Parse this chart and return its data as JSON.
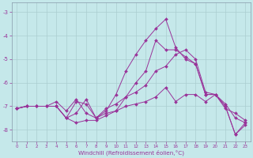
{
  "xlabel": "Windchill (Refroidissement éolien,°C)",
  "bg_color": "#c5e8ea",
  "grid_color": "#aacdd0",
  "line_color": "#993399",
  "xlim": [
    -0.5,
    23.5
  ],
  "ylim": [
    -8.5,
    -2.6
  ],
  "yticks": [
    -8,
    -7,
    -6,
    -5,
    -4,
    -3
  ],
  "xticks": [
    0,
    1,
    2,
    3,
    4,
    5,
    6,
    7,
    8,
    9,
    10,
    11,
    12,
    13,
    14,
    15,
    16,
    17,
    18,
    19,
    20,
    21,
    22,
    23
  ],
  "series": [
    [
      -7.1,
      -7.0,
      -7.0,
      -7.0,
      -7.0,
      -7.5,
      -7.7,
      -7.6,
      -7.6,
      -7.4,
      -7.2,
      -7.0,
      -6.9,
      -6.8,
      -6.6,
      -6.2,
      -6.8,
      -6.5,
      -6.5,
      -6.8,
      -6.5,
      -6.9,
      -7.5,
      -7.7
    ],
    [
      -7.1,
      -7.0,
      -7.0,
      -7.0,
      -7.0,
      -7.5,
      -6.8,
      -6.9,
      -7.5,
      -7.1,
      -6.9,
      -6.6,
      -6.4,
      -6.1,
      -5.5,
      -5.3,
      -4.8,
      -4.6,
      -5.0,
      -6.4,
      -6.5,
      -7.1,
      -7.3,
      -7.6
    ],
    [
      -7.1,
      -7.0,
      -7.0,
      -7.0,
      -7.0,
      -7.5,
      -7.3,
      -6.7,
      -7.5,
      -7.3,
      -7.2,
      -6.6,
      -6.0,
      -5.5,
      -4.2,
      -4.6,
      -4.6,
      -4.9,
      -5.2,
      -6.5,
      -6.5,
      -7.0,
      -8.2,
      -7.8
    ],
    [
      -7.1,
      -7.0,
      -7.0,
      -7.0,
      -6.8,
      -7.2,
      -6.7,
      -7.3,
      -7.5,
      -7.2,
      -6.5,
      -5.5,
      -4.8,
      -4.2,
      -3.7,
      -3.3,
      -4.5,
      -5.0,
      -5.2,
      -6.5,
      -6.5,
      -7.0,
      -8.2,
      -7.7
    ]
  ]
}
